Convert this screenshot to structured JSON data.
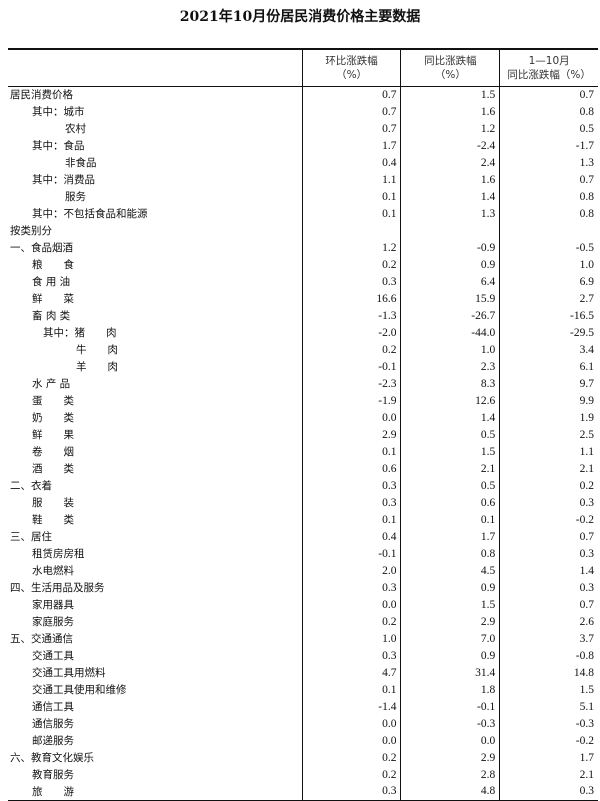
{
  "title": "2021年10月份居民消费价格主要数据",
  "headers": [
    "环比涨跌幅\n（%）",
    "同比涨跌幅\n（%）",
    "1—10月\n同比涨跌幅（%）"
  ],
  "rows": [
    {
      "label": "居民消费价格",
      "indent": 0,
      "values": [
        "0.7",
        "1.5",
        "0.7"
      ]
    },
    {
      "label": "其中：城市",
      "indent": 1,
      "values": [
        "0.7",
        "1.6",
        "0.8"
      ]
    },
    {
      "label": "农村",
      "indent": 2,
      "values": [
        "0.7",
        "1.2",
        "0.5"
      ]
    },
    {
      "label": "其中：食品",
      "indent": 1,
      "values": [
        "1.7",
        "-2.4",
        "-1.7"
      ]
    },
    {
      "label": "非食品",
      "indent": 2,
      "values": [
        "0.4",
        "2.4",
        "1.3"
      ]
    },
    {
      "label": "其中：消费品",
      "indent": 1,
      "values": [
        "1.1",
        "1.6",
        "0.7"
      ]
    },
    {
      "label": "服务",
      "indent": 2,
      "values": [
        "0.1",
        "1.4",
        "0.8"
      ]
    },
    {
      "label": "其中：不包括食品和能源",
      "indent": 1,
      "values": [
        "0.1",
        "1.3",
        "0.8"
      ]
    },
    {
      "label": "按类别分",
      "indent": 0,
      "values": [
        "",
        "",
        ""
      ]
    },
    {
      "label": "一、食品烟酒",
      "indent": 0,
      "values": [
        "1.2",
        "-0.9",
        "-0.5"
      ]
    },
    {
      "label": "粮　　食",
      "indent": 1,
      "values": [
        "0.2",
        "0.9",
        "1.0"
      ]
    },
    {
      "label": "食 用 油",
      "indent": 1,
      "values": [
        "0.3",
        "6.4",
        "6.9"
      ]
    },
    {
      "label": "鲜　　菜",
      "indent": 1,
      "values": [
        "16.6",
        "15.9",
        "2.7"
      ]
    },
    {
      "label": "畜 肉 类",
      "indent": 1,
      "values": [
        "-1.3",
        "-26.7",
        "-16.5"
      ]
    },
    {
      "label": "其中：猪　　肉",
      "indent": 3,
      "values": [
        "-2.0",
        "-44.0",
        "-29.5"
      ]
    },
    {
      "label": "牛　　肉",
      "indent": 4,
      "values": [
        "0.2",
        "1.0",
        "3.4"
      ]
    },
    {
      "label": "羊　　肉",
      "indent": 4,
      "values": [
        "-0.1",
        "2.3",
        "6.1"
      ]
    },
    {
      "label": "水 产 品",
      "indent": 1,
      "values": [
        "-2.3",
        "8.3",
        "9.7"
      ]
    },
    {
      "label": "蛋　　类",
      "indent": 1,
      "values": [
        "-1.9",
        "12.6",
        "9.9"
      ]
    },
    {
      "label": "奶　　类",
      "indent": 1,
      "values": [
        "0.0",
        "1.4",
        "1.9"
      ]
    },
    {
      "label": "鲜　　果",
      "indent": 1,
      "values": [
        "2.9",
        "0.5",
        "2.5"
      ]
    },
    {
      "label": "卷　　烟",
      "indent": 1,
      "values": [
        "0.1",
        "1.5",
        "1.1"
      ]
    },
    {
      "label": "酒　　类",
      "indent": 1,
      "values": [
        "0.6",
        "2.1",
        "2.1"
      ]
    },
    {
      "label": "二、衣着",
      "indent": 0,
      "values": [
        "0.3",
        "0.5",
        "0.2"
      ]
    },
    {
      "label": "服　　装",
      "indent": 1,
      "values": [
        "0.3",
        "0.6",
        "0.3"
      ]
    },
    {
      "label": "鞋　　类",
      "indent": 1,
      "values": [
        "0.1",
        "0.1",
        "-0.2"
      ]
    },
    {
      "label": "三、居住",
      "indent": 0,
      "values": [
        "0.4",
        "1.7",
        "0.7"
      ]
    },
    {
      "label": "租赁房房租",
      "indent": 1,
      "values": [
        "-0.1",
        "0.8",
        "0.3"
      ]
    },
    {
      "label": "水电燃料",
      "indent": 1,
      "values": [
        "2.0",
        "4.5",
        "1.4"
      ]
    },
    {
      "label": "四、生活用品及服务",
      "indent": 0,
      "values": [
        "0.3",
        "0.9",
        "0.3"
      ]
    },
    {
      "label": "家用器具",
      "indent": 1,
      "values": [
        "0.0",
        "1.5",
        "0.7"
      ]
    },
    {
      "label": "家庭服务",
      "indent": 1,
      "values": [
        "0.2",
        "2.9",
        "2.6"
      ]
    },
    {
      "label": "五、交通通信",
      "indent": 0,
      "values": [
        "1.0",
        "7.0",
        "3.7"
      ]
    },
    {
      "label": "交通工具",
      "indent": 1,
      "values": [
        "0.3",
        "0.9",
        "-0.8"
      ]
    },
    {
      "label": "交通工具用燃料",
      "indent": 1,
      "values": [
        "4.7",
        "31.4",
        "14.8"
      ]
    },
    {
      "label": "交通工具使用和维修",
      "indent": 1,
      "values": [
        "0.1",
        "1.8",
        "1.5"
      ]
    },
    {
      "label": "通信工具",
      "indent": 1,
      "values": [
        "-1.4",
        "-0.1",
        "5.1"
      ]
    },
    {
      "label": "通信服务",
      "indent": 1,
      "values": [
        "0.0",
        "-0.3",
        "-0.3"
      ]
    },
    {
      "label": "邮递服务",
      "indent": 1,
      "values": [
        "0.0",
        "0.0",
        "-0.2"
      ]
    },
    {
      "label": "六、教育文化娱乐",
      "indent": 0,
      "values": [
        "0.2",
        "2.9",
        "1.7"
      ]
    },
    {
      "label": "教育服务",
      "indent": 1,
      "values": [
        "0.2",
        "2.8",
        "2.1"
      ]
    },
    {
      "label": "旅　　游",
      "indent": 1,
      "values": [
        "0.3",
        "4.8",
        "0.3"
      ]
    }
  ]
}
